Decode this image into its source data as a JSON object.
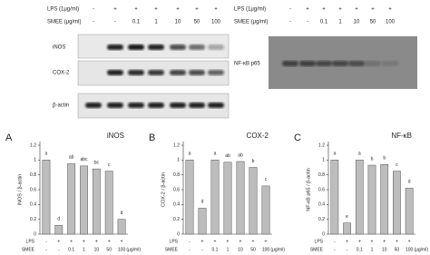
{
  "blots": [
    {
      "lps_label": "LPS (1μg/ml)",
      "smee_label": "SMEE (μg/ml)",
      "lps": [
        "-",
        "+",
        "+",
        "+",
        "+",
        "+",
        "+"
      ],
      "smee": [
        "-",
        "-",
        "0.1",
        "1",
        "10",
        "50",
        "100"
      ],
      "rows": [
        "iNOS",
        "COX-2",
        "β-actin"
      ]
    },
    {
      "lps_label": "LPS (1μg/ml)",
      "smee_label": "SMEE (μg/ml)",
      "lps": [
        "-",
        "+",
        "+",
        "+",
        "+",
        "+",
        "+"
      ],
      "smee": [
        "-",
        "-",
        "0.1",
        "1",
        "10",
        "50",
        "100"
      ],
      "rows": [
        "NF-κB p65"
      ]
    }
  ],
  "chart_data": [
    {
      "type": "bar",
      "panel": "A",
      "title": "iNOS",
      "y_label": "iNOS / β-actin",
      "row_labels": [
        "LPS",
        "SMEE"
      ],
      "unit": "(μg/ml)",
      "lps": [
        "-",
        "+",
        "+",
        "+",
        "+",
        "+",
        "+"
      ],
      "categories": [
        "-",
        "-",
        "0.1",
        "1",
        "10",
        "50",
        "100"
      ],
      "values": [
        1.0,
        0.12,
        0.95,
        0.92,
        0.88,
        0.85,
        0.2
      ],
      "significance": [
        "a",
        "d",
        "ab",
        "abc",
        "bc",
        "c",
        "d"
      ],
      "color": "#bdbdbd",
      "ylim": [
        0,
        1.2
      ],
      "yticks": [
        0,
        0.2,
        0.4,
        0.6,
        0.8,
        1,
        1.2
      ]
    },
    {
      "type": "bar",
      "panel": "B",
      "title": "COX-2",
      "y_label": "COX-2 / β-actin",
      "row_labels": [
        "LPS",
        "SMEE"
      ],
      "unit": "(μg/ml)",
      "lps": [
        "-",
        "+",
        "+",
        "+",
        "+",
        "+",
        "+"
      ],
      "categories": [
        "-",
        "-",
        "0.1",
        "1",
        "10",
        "50",
        "100"
      ],
      "values": [
        1.0,
        0.35,
        1.0,
        0.97,
        0.98,
        0.9,
        0.65
      ],
      "significance": [
        "a",
        "d",
        "a",
        "ab",
        "ab",
        "b",
        "c"
      ],
      "color": "#bdbdbd",
      "ylim": [
        0,
        1.2
      ],
      "yticks": [
        0,
        0.2,
        0.4,
        0.6,
        0.8,
        1,
        1.2
      ]
    },
    {
      "type": "bar",
      "panel": "C",
      "title": "NF-κB",
      "y_label": "NF-κB p65 / β-actin",
      "row_labels": [
        "LPS",
        "SMEE"
      ],
      "unit": "(μg/ml)",
      "lps": [
        "-",
        "+",
        "+",
        "+",
        "+",
        "+",
        "+"
      ],
      "categories": [
        "-",
        "-",
        "0.1",
        "1",
        "10",
        "50",
        "100"
      ],
      "values": [
        1.0,
        0.15,
        1.0,
        0.93,
        0.94,
        0.85,
        0.62
      ],
      "significance": [
        "a",
        "e",
        "a",
        "b",
        "b",
        "c",
        "d"
      ],
      "color": "#bdbdbd",
      "ylim": [
        0,
        1.2
      ],
      "yticks": [
        0,
        0.2,
        0.4,
        0.6,
        0.8,
        1,
        1.2
      ]
    }
  ]
}
